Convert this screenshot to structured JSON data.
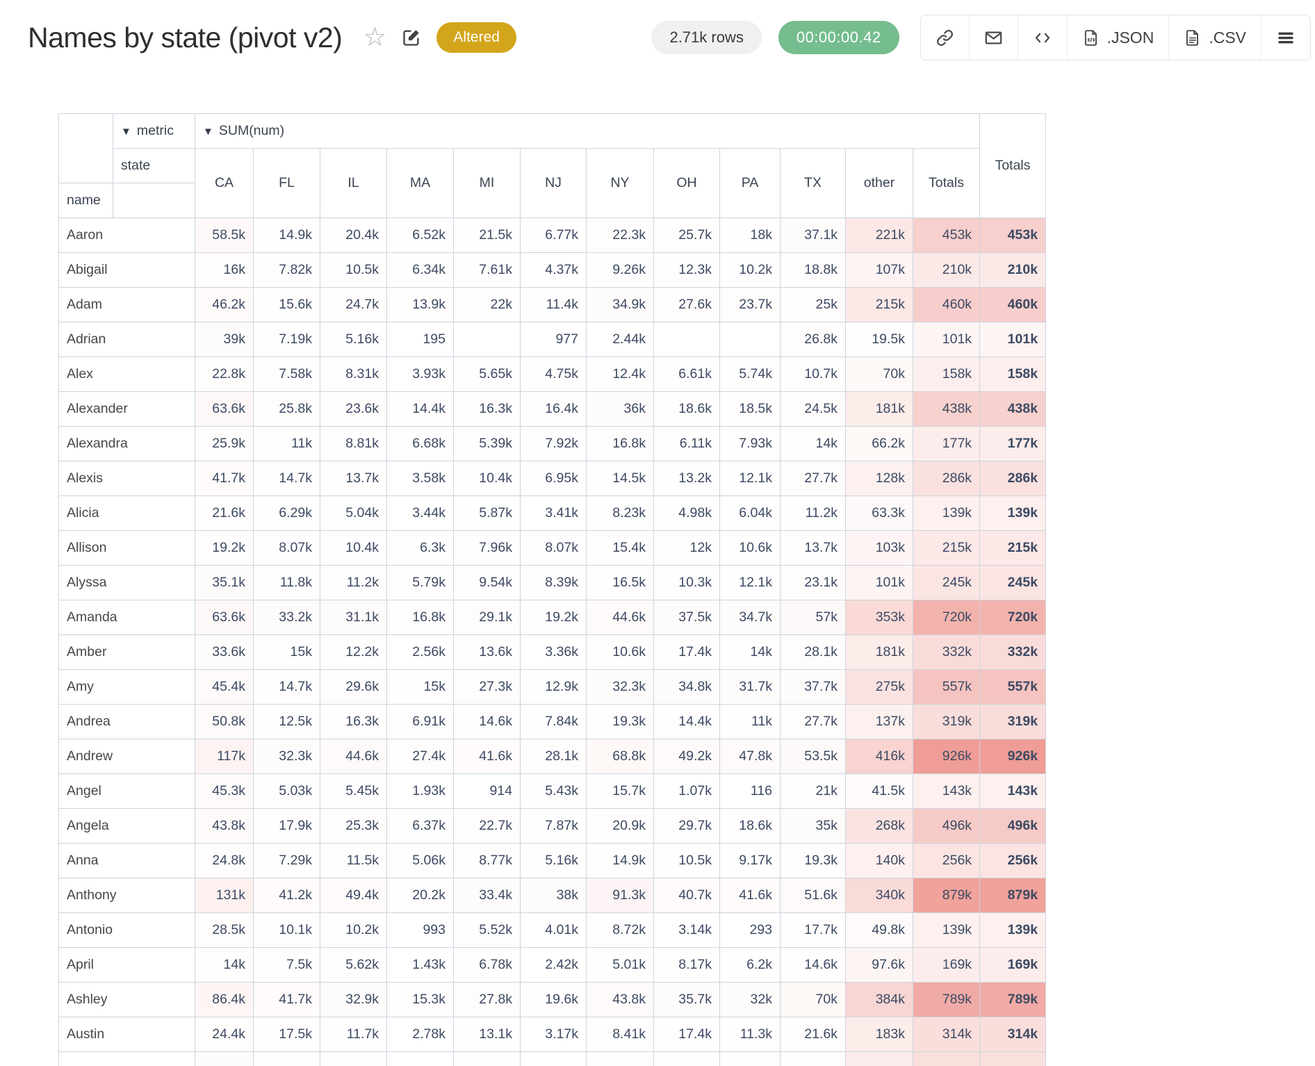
{
  "header": {
    "title": "Names by state (pivot v2)",
    "status_badge": "Altered",
    "rows_badge": "2.71k rows",
    "timer_badge": "00:00:00.42",
    "icons": [
      "star-icon",
      "edit-icon"
    ],
    "accent_colors": {
      "altered_badge_bg": "#d3a51b",
      "rows_badge_bg": "#f0f0f0",
      "timer_badge_bg": "#75bd8e"
    },
    "toolbar": [
      {
        "icon": "link-icon",
        "label": ""
      },
      {
        "icon": "mail-icon",
        "label": ""
      },
      {
        "icon": "code-icon",
        "label": ""
      },
      {
        "icon": "file-json-icon",
        "label": ".JSON"
      },
      {
        "icon": "file-csv-icon",
        "label": ".CSV"
      },
      {
        "icon": "menu-icon",
        "label": ""
      }
    ]
  },
  "pivot": {
    "collapse_arrow": "▼",
    "metric_label": "metric",
    "sum_label": "SUM(num)",
    "state_label": "state",
    "name_label": "name",
    "totals_label": "Totals",
    "heat_base_rgb": [
      239,
      157,
      150
    ],
    "border_color": "#ccd4de",
    "columns": [
      "CA",
      "FL",
      "IL",
      "MA",
      "MI",
      "NJ",
      "NY",
      "OH",
      "PA",
      "TX",
      "other",
      "Totals"
    ],
    "rows": [
      {
        "name": "Aaron",
        "cells": [
          "58.5k",
          "14.9k",
          "20.4k",
          "6.52k",
          "21.5k",
          "6.77k",
          "22.3k",
          "25.7k",
          "18k",
          "37.1k",
          "221k",
          "453k"
        ],
        "total": "453k"
      },
      {
        "name": "Abigail",
        "cells": [
          "16k",
          "7.82k",
          "10.5k",
          "6.34k",
          "7.61k",
          "4.37k",
          "9.26k",
          "12.3k",
          "10.2k",
          "18.8k",
          "107k",
          "210k"
        ],
        "total": "210k"
      },
      {
        "name": "Adam",
        "cells": [
          "46.2k",
          "15.6k",
          "24.7k",
          "13.9k",
          "22k",
          "11.4k",
          "34.9k",
          "27.6k",
          "23.7k",
          "25k",
          "215k",
          "460k"
        ],
        "total": "460k"
      },
      {
        "name": "Adrian",
        "cells": [
          "39k",
          "7.19k",
          "5.16k",
          "195",
          "",
          "977",
          "2.44k",
          "",
          "",
          "26.8k",
          "19.5k",
          "101k"
        ],
        "total": "101k"
      },
      {
        "name": "Alex",
        "cells": [
          "22.8k",
          "7.58k",
          "8.31k",
          "3.93k",
          "5.65k",
          "4.75k",
          "12.4k",
          "6.61k",
          "5.74k",
          "10.7k",
          "70k",
          "158k"
        ],
        "total": "158k"
      },
      {
        "name": "Alexander",
        "cells": [
          "63.6k",
          "25.8k",
          "23.6k",
          "14.4k",
          "16.3k",
          "16.4k",
          "36k",
          "18.6k",
          "18.5k",
          "24.5k",
          "181k",
          "438k"
        ],
        "total": "438k"
      },
      {
        "name": "Alexandra",
        "cells": [
          "25.9k",
          "11k",
          "8.81k",
          "6.68k",
          "5.39k",
          "7.92k",
          "16.8k",
          "6.11k",
          "7.93k",
          "14k",
          "66.2k",
          "177k"
        ],
        "total": "177k"
      },
      {
        "name": "Alexis",
        "cells": [
          "41.7k",
          "14.7k",
          "13.7k",
          "3.58k",
          "10.4k",
          "6.95k",
          "14.5k",
          "13.2k",
          "12.1k",
          "27.7k",
          "128k",
          "286k"
        ],
        "total": "286k"
      },
      {
        "name": "Alicia",
        "cells": [
          "21.6k",
          "6.29k",
          "5.04k",
          "3.44k",
          "5.87k",
          "3.41k",
          "8.23k",
          "4.98k",
          "6.04k",
          "11.2k",
          "63.3k",
          "139k"
        ],
        "total": "139k"
      },
      {
        "name": "Allison",
        "cells": [
          "19.2k",
          "8.07k",
          "10.4k",
          "6.3k",
          "7.96k",
          "8.07k",
          "15.4k",
          "12k",
          "10.6k",
          "13.7k",
          "103k",
          "215k"
        ],
        "total": "215k"
      },
      {
        "name": "Alyssa",
        "cells": [
          "35.1k",
          "11.8k",
          "11.2k",
          "5.79k",
          "9.54k",
          "8.39k",
          "16.5k",
          "10.3k",
          "12.1k",
          "23.1k",
          "101k",
          "245k"
        ],
        "total": "245k"
      },
      {
        "name": "Amanda",
        "cells": [
          "63.6k",
          "33.2k",
          "31.1k",
          "16.8k",
          "29.1k",
          "19.2k",
          "44.6k",
          "37.5k",
          "34.7k",
          "57k",
          "353k",
          "720k"
        ],
        "total": "720k"
      },
      {
        "name": "Amber",
        "cells": [
          "33.6k",
          "15k",
          "12.2k",
          "2.56k",
          "13.6k",
          "3.36k",
          "10.6k",
          "17.4k",
          "14k",
          "28.1k",
          "181k",
          "332k"
        ],
        "total": "332k"
      },
      {
        "name": "Amy",
        "cells": [
          "45.4k",
          "14.7k",
          "29.6k",
          "15k",
          "27.3k",
          "12.9k",
          "32.3k",
          "34.8k",
          "31.7k",
          "37.7k",
          "275k",
          "557k"
        ],
        "total": "557k"
      },
      {
        "name": "Andrea",
        "cells": [
          "50.8k",
          "12.5k",
          "16.3k",
          "6.91k",
          "14.6k",
          "7.84k",
          "19.3k",
          "14.4k",
          "11k",
          "27.7k",
          "137k",
          "319k"
        ],
        "total": "319k"
      },
      {
        "name": "Andrew",
        "cells": [
          "117k",
          "32.3k",
          "44.6k",
          "27.4k",
          "41.6k",
          "28.1k",
          "68.8k",
          "49.2k",
          "47.8k",
          "53.5k",
          "416k",
          "926k"
        ],
        "total": "926k"
      },
      {
        "name": "Angel",
        "cells": [
          "45.3k",
          "5.03k",
          "5.45k",
          "1.93k",
          "914",
          "5.43k",
          "15.7k",
          "1.07k",
          "116",
          "21k",
          "41.5k",
          "143k"
        ],
        "total": "143k"
      },
      {
        "name": "Angela",
        "cells": [
          "43.8k",
          "17.9k",
          "25.3k",
          "6.37k",
          "22.7k",
          "7.87k",
          "20.9k",
          "29.7k",
          "18.6k",
          "35k",
          "268k",
          "496k"
        ],
        "total": "496k"
      },
      {
        "name": "Anna",
        "cells": [
          "24.8k",
          "7.29k",
          "11.5k",
          "5.06k",
          "8.77k",
          "5.16k",
          "14.9k",
          "10.5k",
          "9.17k",
          "19.3k",
          "140k",
          "256k"
        ],
        "total": "256k"
      },
      {
        "name": "Anthony",
        "cells": [
          "131k",
          "41.2k",
          "49.4k",
          "20.2k",
          "33.4k",
          "38k",
          "91.3k",
          "40.7k",
          "41.6k",
          "51.6k",
          "340k",
          "879k"
        ],
        "total": "879k"
      },
      {
        "name": "Antonio",
        "cells": [
          "28.5k",
          "10.1k",
          "10.2k",
          "993",
          "5.52k",
          "4.01k",
          "8.72k",
          "3.14k",
          "293",
          "17.7k",
          "49.8k",
          "139k"
        ],
        "total": "139k"
      },
      {
        "name": "April",
        "cells": [
          "14k",
          "7.5k",
          "5.62k",
          "1.43k",
          "6.78k",
          "2.42k",
          "5.01k",
          "8.17k",
          "6.2k",
          "14.6k",
          "97.6k",
          "169k"
        ],
        "total": "169k"
      },
      {
        "name": "Ashley",
        "cells": [
          "86.4k",
          "41.7k",
          "32.9k",
          "15.3k",
          "27.8k",
          "19.6k",
          "43.8k",
          "35.7k",
          "32k",
          "70k",
          "384k",
          "789k"
        ],
        "total": "789k"
      },
      {
        "name": "Austin",
        "cells": [
          "24.4k",
          "17.5k",
          "11.7k",
          "2.78k",
          "13.1k",
          "3.17k",
          "8.41k",
          "17.4k",
          "11.3k",
          "21.6k",
          "183k",
          "314k"
        ],
        "total": "314k"
      }
    ],
    "partial_row": {
      "cell_tints": [
        0.04,
        0.01,
        0.01,
        0,
        0.01,
        0,
        0.02,
        0.01,
        0.01,
        0.02,
        0.18,
        0.32
      ],
      "total_tint": 0.32
    }
  }
}
